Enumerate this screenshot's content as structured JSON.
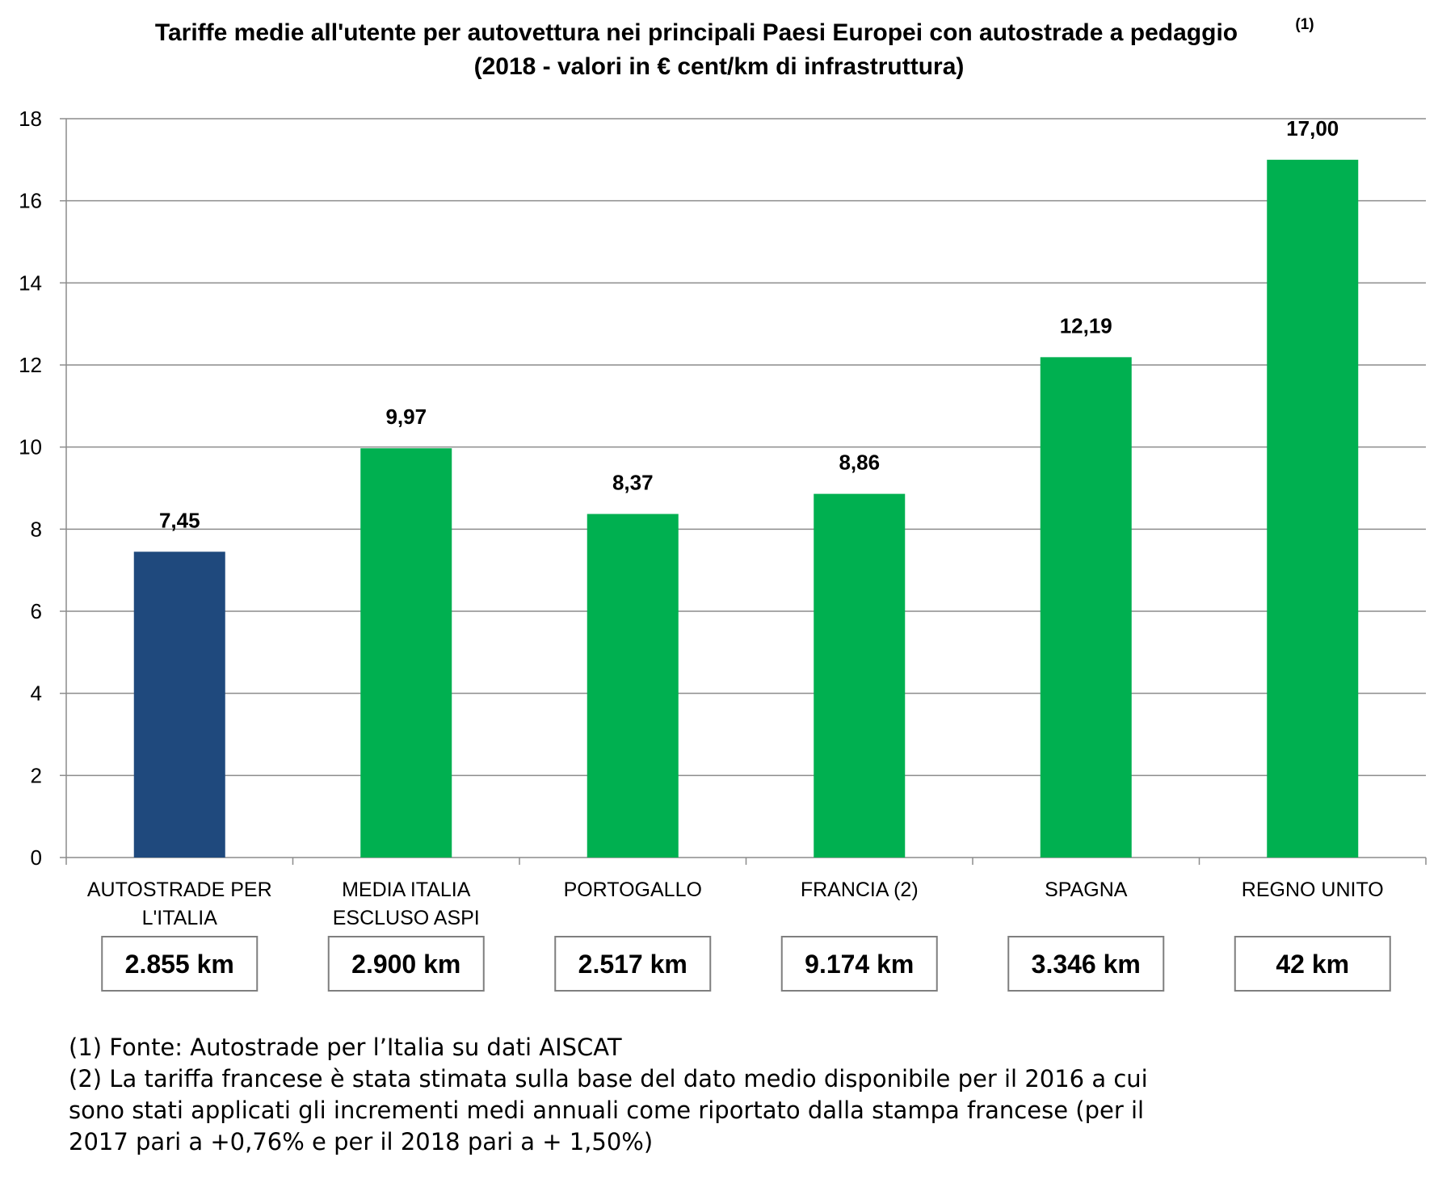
{
  "chart_data": {
    "type": "bar",
    "title": "Tariffe medie all'utente per autovettura nei principali  Paesi Europei con autostrade a pedaggio",
    "title_note": "(1)",
    "subtitle": "(2018 - valori in € cent/km di infrastruttura)",
    "categories": [
      [
        "AUTOSTRADE PER",
        "L'ITALIA"
      ],
      [
        "MEDIA ITALIA",
        "ESCLUSO ASPI"
      ],
      [
        "PORTOGALLO"
      ],
      [
        "FRANCIA (2)"
      ],
      [
        "SPAGNA"
      ],
      [
        "REGNO UNITO"
      ]
    ],
    "values": [
      7.45,
      9.97,
      8.37,
      8.86,
      12.19,
      17.0
    ],
    "value_labels": [
      "7,45",
      "9,97",
      "8,37",
      "8,86",
      "12,19",
      "17,00"
    ],
    "km_labels": [
      "2.855 km",
      "2.900 km",
      "2.517 km",
      "9.174 km",
      "3.346 km",
      "42 km"
    ],
    "bar_colors": [
      "#1f497d",
      "#00b050",
      "#00b050",
      "#00b050",
      "#00b050",
      "#00b050"
    ],
    "ylim": [
      0,
      18
    ],
    "yticks": [
      0,
      2,
      4,
      6,
      8,
      10,
      12,
      14,
      16,
      18
    ],
    "grid": true,
    "xlabel": "",
    "ylabel": ""
  },
  "notes": [
    "(1) Fonte: Autostrade per l’Italia su dati AISCAT",
    "(2) La tariffa francese è stata stimata sulla base del dato medio disponibile per il 2016 a cui",
    "sono stati applicati gli incrementi medi annuali come riportato dalla stampa francese (per il",
    "2017 pari a +0,76% e per il 2018 pari a + 1,50%)"
  ],
  "colors": {
    "grid": "#8c8c8c",
    "axis": "#8c8c8c",
    "box_border": "#7f7f7f"
  }
}
